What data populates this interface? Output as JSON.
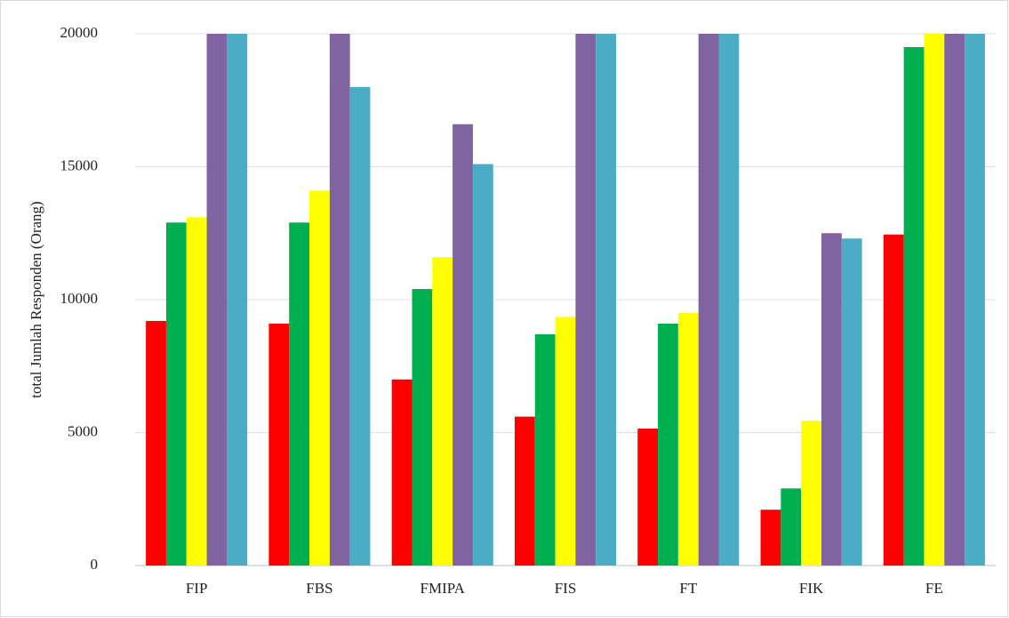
{
  "chart_data": {
    "type": "bar",
    "y_label": "total Jumlah Responden (Orang)",
    "categories": [
      "FIP",
      "FBS",
      "FMIPA",
      "FIS",
      "FT",
      "FIK",
      "FE"
    ],
    "series": [
      {
        "color": "#ff0000",
        "values": [
          9200,
          9100,
          7000,
          5600,
          5150,
          2100,
          12450
        ]
      },
      {
        "color": "#00b050",
        "values": [
          12900,
          12900,
          10400,
          8700,
          9100,
          2900,
          19500
        ]
      },
      {
        "color": "#ffff00",
        "values": [
          13100,
          14100,
          11600,
          9350,
          9500,
          5450,
          20000
        ]
      },
      {
        "color": "#8064a2",
        "values": [
          20000,
          20000,
          16600,
          20000,
          20000,
          12500,
          20000
        ]
      },
      {
        "color": "#4bacc6",
        "values": [
          20000,
          18000,
          15100,
          20000,
          20000,
          12300,
          20000
        ]
      }
    ],
    "ylim": [
      0,
      20000
    ],
    "yticks": [
      0,
      5000,
      10000,
      15000,
      20000
    ],
    "grid": true
  }
}
